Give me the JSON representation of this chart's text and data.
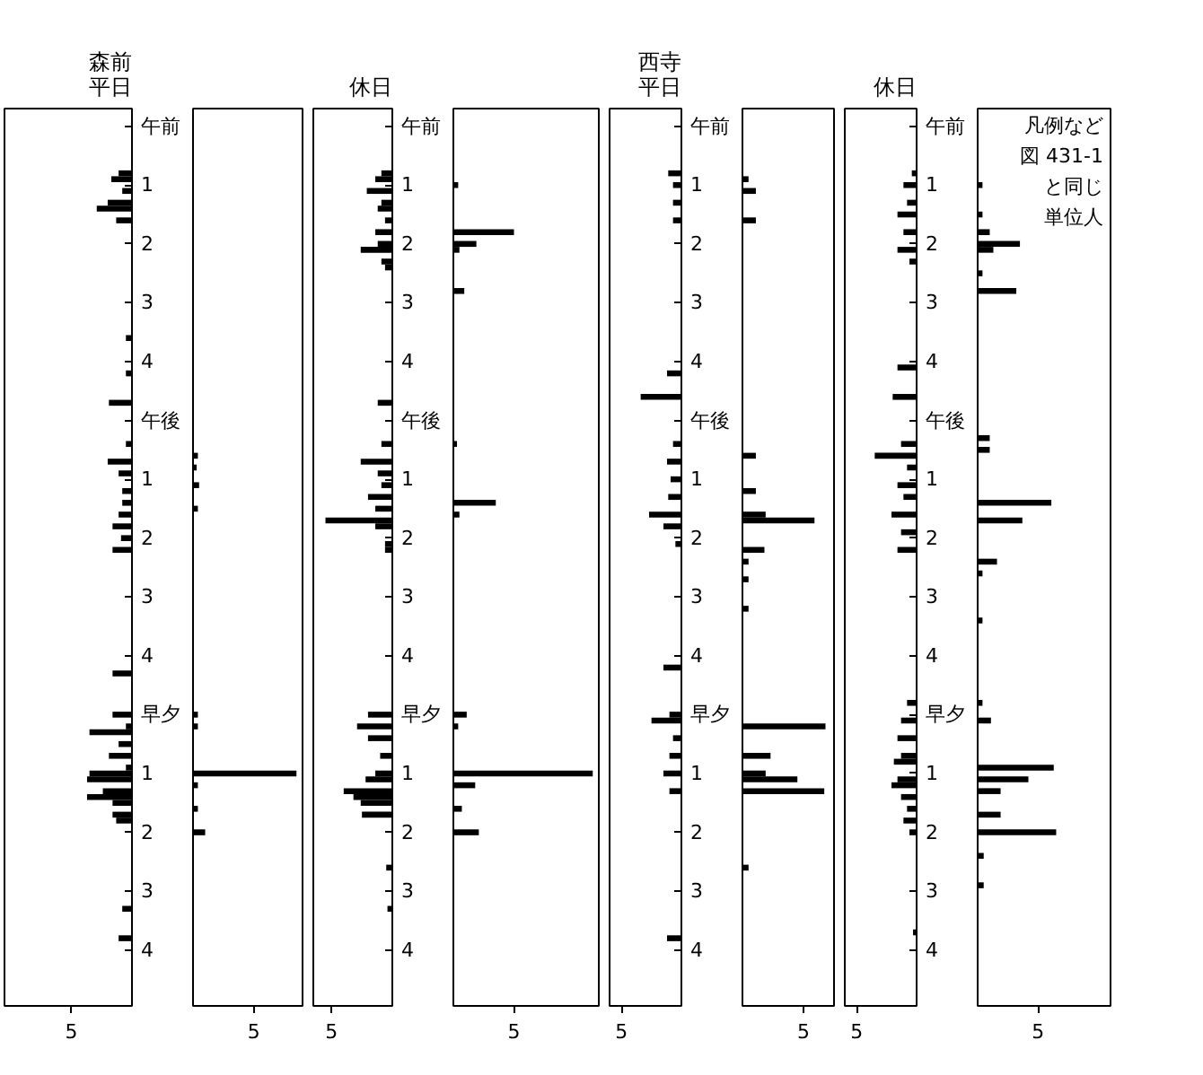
{
  "chart_data": [
    {
      "type": "bar",
      "orientation": "horizontal",
      "title": "森前平日",
      "color": "#000000",
      "xlim": [
        10.5,
        0
      ],
      "xticks": [
        5
      ],
      "categories": [
        "午前",
        null,
        null,
        null,
        null,
        null,
        null,
        null,
        null,
        null,
        "1",
        null,
        null,
        null,
        null,
        null,
        null,
        null,
        null,
        null,
        "2",
        null,
        null,
        null,
        null,
        null,
        null,
        null,
        null,
        null,
        "3",
        null,
        null,
        null,
        null,
        null,
        null,
        null,
        null,
        null,
        "4",
        null,
        null,
        null,
        null,
        null,
        null,
        null,
        null,
        null,
        "午後",
        null,
        null,
        null,
        null,
        null,
        null,
        null,
        null,
        null,
        "1",
        null,
        null,
        null,
        null,
        null,
        null,
        null,
        null,
        null,
        "2",
        null,
        null,
        null,
        null,
        null,
        null,
        null,
        null,
        null,
        "3",
        null,
        null,
        null,
        null,
        null,
        null,
        null,
        null,
        null,
        "4",
        null,
        null,
        null,
        null,
        null,
        null,
        null,
        null,
        null,
        "早夕",
        null,
        null,
        null,
        null,
        null,
        null,
        null,
        null,
        null,
        "1",
        null,
        null,
        null,
        null,
        null,
        null,
        null,
        null,
        null,
        "2",
        null,
        null,
        null,
        null,
        null,
        null,
        null,
        null,
        null,
        "3",
        null,
        null,
        null,
        null,
        null,
        null,
        null,
        null,
        null,
        "4",
        null,
        null,
        null,
        null,
        null,
        null,
        null,
        null,
        null
      ],
      "values": [
        null,
        null,
        null,
        null,
        null,
        null,
        null,
        null,
        1.1,
        1.7,
        null,
        0.8,
        null,
        2.0,
        2.9,
        null,
        1.3,
        null,
        null,
        null,
        null,
        null,
        null,
        null,
        null,
        null,
        null,
        null,
        null,
        null,
        null,
        null,
        null,
        null,
        null,
        null,
        0.5,
        null,
        null,
        null,
        null,
        null,
        0.5,
        null,
        null,
        null,
        null,
        1.9,
        null,
        null,
        null,
        null,
        null,
        null,
        0.5,
        null,
        null,
        2.0,
        null,
        1.1,
        null,
        null,
        0.8,
        null,
        0.8,
        null,
        1.1,
        null,
        1.6,
        null,
        0.9,
        null,
        1.6,
        null,
        null,
        null,
        null,
        null,
        null,
        null,
        null,
        null,
        null,
        null,
        null,
        null,
        null,
        null,
        null,
        null,
        null,
        null,
        null,
        1.6,
        null,
        null,
        null,
        null,
        null,
        null,
        1.6,
        null,
        0.5,
        3.5,
        null,
        1.1,
        null,
        1.9,
        null,
        0.5,
        3.5,
        3.7,
        null,
        2.4,
        3.7,
        1.6,
        null,
        1.6,
        1.3,
        null,
        null,
        null,
        null,
        null,
        null,
        null,
        null,
        null,
        null,
        null,
        null,
        null,
        null,
        0.8,
        null,
        null,
        null,
        null,
        1.1,
        null,
        null,
        null,
        null,
        null,
        null,
        null,
        null,
        null,
        null,
        null
      ]
    },
    {
      "type": "bar",
      "orientation": "horizontal",
      "color": "#000000",
      "xlim": [
        0,
        9
      ],
      "xticks": [
        5
      ],
      "categories": [
        null,
        null,
        null,
        null,
        null,
        null,
        null,
        null,
        null,
        null,
        null,
        null,
        null,
        null,
        null,
        null,
        null,
        null,
        null,
        null,
        null,
        null,
        null,
        null,
        null,
        null,
        null,
        null,
        null,
        null,
        null,
        null,
        null,
        null,
        null,
        null,
        null,
        null,
        null,
        null,
        null,
        null,
        null,
        null,
        null,
        null,
        null,
        null,
        null,
        null,
        null,
        null,
        null,
        null,
        null,
        null,
        null,
        null,
        null,
        null,
        null,
        null,
        null,
        null,
        null,
        null,
        null,
        null,
        null,
        null,
        null,
        null,
        null,
        null,
        null,
        null,
        null,
        null,
        null,
        null,
        null,
        null,
        null,
        null,
        null,
        null,
        null,
        null,
        null,
        null,
        null,
        null,
        null,
        null,
        null,
        null,
        null,
        null,
        null,
        null,
        null,
        null,
        null,
        null,
        null,
        null,
        null,
        null,
        null,
        null,
        null,
        null,
        null,
        null,
        null,
        null,
        null,
        null,
        null,
        null,
        null,
        null,
        null,
        null,
        null,
        null,
        null,
        null,
        null,
        null,
        null,
        null,
        null,
        null,
        null,
        null,
        null,
        null,
        null,
        null,
        null,
        null,
        null,
        null,
        null,
        null,
        null,
        null,
        null,
        null
      ],
      "values": [
        null,
        null,
        null,
        null,
        null,
        null,
        null,
        null,
        null,
        null,
        null,
        null,
        null,
        null,
        null,
        null,
        null,
        null,
        null,
        null,
        null,
        null,
        null,
        null,
        null,
        null,
        null,
        null,
        null,
        null,
        null,
        null,
        null,
        null,
        null,
        null,
        null,
        null,
        null,
        null,
        null,
        null,
        null,
        null,
        null,
        null,
        null,
        null,
        null,
        null,
        null,
        null,
        null,
        null,
        null,
        null,
        0.4,
        null,
        0.3,
        null,
        null,
        0.5,
        null,
        null,
        null,
        0.4,
        null,
        null,
        null,
        null,
        null,
        null,
        null,
        null,
        null,
        null,
        null,
        null,
        null,
        null,
        null,
        null,
        null,
        null,
        null,
        null,
        null,
        null,
        null,
        null,
        null,
        null,
        null,
        null,
        null,
        null,
        null,
        null,
        null,
        null,
        0.4,
        null,
        0.4,
        null,
        null,
        null,
        null,
        null,
        null,
        null,
        8.5,
        null,
        0.4,
        null,
        null,
        null,
        0.4,
        null,
        null,
        null,
        1.0,
        null,
        null,
        null,
        null,
        null,
        null,
        null,
        null,
        null,
        null,
        null,
        null,
        null,
        null,
        null,
        null,
        null,
        null,
        null,
        null,
        null,
        null,
        null,
        null,
        null,
        null,
        null,
        null,
        null
      ]
    },
    {
      "type": "bar",
      "orientation": "horizontal",
      "title": "休日",
      "color": "#000000",
      "xlim": [
        6.5,
        0
      ],
      "xticks": [
        5
      ],
      "categories": [
        "午前",
        null,
        null,
        null,
        null,
        null,
        null,
        null,
        null,
        null,
        "1",
        null,
        null,
        null,
        null,
        null,
        null,
        null,
        null,
        null,
        "2",
        null,
        null,
        null,
        null,
        null,
        null,
        null,
        null,
        null,
        "3",
        null,
        null,
        null,
        null,
        null,
        null,
        null,
        null,
        null,
        "4",
        null,
        null,
        null,
        null,
        null,
        null,
        null,
        null,
        null,
        "午後",
        null,
        null,
        null,
        null,
        null,
        null,
        null,
        null,
        null,
        "1",
        null,
        null,
        null,
        null,
        null,
        null,
        null,
        null,
        null,
        "2",
        null,
        null,
        null,
        null,
        null,
        null,
        null,
        null,
        null,
        "3",
        null,
        null,
        null,
        null,
        null,
        null,
        null,
        null,
        null,
        "4",
        null,
        null,
        null,
        null,
        null,
        null,
        null,
        null,
        null,
        "早夕",
        null,
        null,
        null,
        null,
        null,
        null,
        null,
        null,
        null,
        "1",
        null,
        null,
        null,
        null,
        null,
        null,
        null,
        null,
        null,
        "2",
        null,
        null,
        null,
        null,
        null,
        null,
        null,
        null,
        null,
        "3",
        null,
        null,
        null,
        null,
        null,
        null,
        null,
        null,
        null,
        "4",
        null,
        null,
        null,
        null,
        null,
        null,
        null,
        null,
        null
      ],
      "values": [
        null,
        null,
        null,
        null,
        null,
        null,
        null,
        null,
        0.9,
        1.4,
        null,
        2.1,
        null,
        0.9,
        1.2,
        null,
        0.6,
        null,
        1.4,
        null,
        1.2,
        2.6,
        null,
        0.9,
        0.6,
        null,
        null,
        null,
        null,
        null,
        null,
        null,
        null,
        null,
        null,
        null,
        null,
        null,
        null,
        null,
        null,
        null,
        null,
        null,
        null,
        null,
        null,
        1.2,
        null,
        null,
        null,
        null,
        null,
        null,
        0.9,
        null,
        null,
        2.6,
        null,
        1.2,
        null,
        0.9,
        null,
        2.0,
        null,
        1.4,
        null,
        5.5,
        1.4,
        null,
        null,
        0.6,
        0.6,
        null,
        null,
        null,
        null,
        null,
        null,
        null,
        null,
        null,
        null,
        null,
        null,
        null,
        null,
        null,
        null,
        null,
        null,
        null,
        null,
        null,
        null,
        null,
        null,
        null,
        null,
        null,
        2.0,
        null,
        2.9,
        null,
        2.0,
        null,
        null,
        1.0,
        null,
        null,
        1.4,
        2.2,
        null,
        4.0,
        3.2,
        2.6,
        null,
        2.5,
        null,
        null,
        null,
        null,
        null,
        null,
        null,
        null,
        0.5,
        null,
        null,
        null,
        null,
        null,
        null,
        0.4,
        null,
        null,
        null,
        null,
        null,
        null,
        null,
        null,
        null,
        null,
        null,
        null,
        null,
        null,
        null,
        null
      ]
    },
    {
      "type": "bar",
      "orientation": "horizontal",
      "color": "#000000",
      "xlim": [
        0,
        12
      ],
      "xticks": [
        5
      ],
      "categories": [
        null,
        null,
        null,
        null,
        null,
        null,
        null,
        null,
        null,
        null,
        null,
        null,
        null,
        null,
        null,
        null,
        null,
        null,
        null,
        null,
        null,
        null,
        null,
        null,
        null,
        null,
        null,
        null,
        null,
        null,
        null,
        null,
        null,
        null,
        null,
        null,
        null,
        null,
        null,
        null,
        null,
        null,
        null,
        null,
        null,
        null,
        null,
        null,
        null,
        null,
        null,
        null,
        null,
        null,
        null,
        null,
        null,
        null,
        null,
        null,
        null,
        null,
        null,
        null,
        null,
        null,
        null,
        null,
        null,
        null,
        null,
        null,
        null,
        null,
        null,
        null,
        null,
        null,
        null,
        null,
        null,
        null,
        null,
        null,
        null,
        null,
        null,
        null,
        null,
        null,
        null,
        null,
        null,
        null,
        null,
        null,
        null,
        null,
        null,
        null,
        null,
        null,
        null,
        null,
        null,
        null,
        null,
        null,
        null,
        null,
        null,
        null,
        null,
        null,
        null,
        null,
        null,
        null,
        null,
        null,
        null,
        null,
        null,
        null,
        null,
        null,
        null,
        null,
        null,
        null,
        null,
        null,
        null,
        null,
        null,
        null,
        null,
        null,
        null,
        null,
        null,
        null,
        null,
        null,
        null,
        null,
        null,
        null,
        null,
        null
      ],
      "values": [
        null,
        null,
        null,
        null,
        null,
        null,
        null,
        null,
        null,
        null,
        0.4,
        null,
        null,
        null,
        null,
        null,
        null,
        null,
        5.0,
        null,
        1.9,
        0.5,
        null,
        null,
        null,
        null,
        null,
        null,
        0.9,
        null,
        null,
        null,
        null,
        null,
        null,
        null,
        null,
        null,
        null,
        null,
        null,
        null,
        null,
        null,
        null,
        null,
        null,
        null,
        null,
        null,
        null,
        null,
        null,
        null,
        0.3,
        null,
        null,
        null,
        null,
        null,
        null,
        null,
        null,
        null,
        3.5,
        null,
        0.5,
        null,
        null,
        null,
        null,
        null,
        null,
        null,
        null,
        null,
        null,
        null,
        null,
        null,
        null,
        null,
        null,
        null,
        null,
        null,
        null,
        null,
        null,
        null,
        null,
        null,
        null,
        null,
        null,
        null,
        null,
        null,
        null,
        null,
        1.1,
        null,
        0.4,
        null,
        null,
        null,
        null,
        null,
        null,
        null,
        11.5,
        null,
        1.8,
        null,
        null,
        null,
        0.7,
        null,
        null,
        null,
        2.1,
        null,
        null,
        null,
        null,
        null,
        null,
        null,
        null,
        null,
        null,
        null,
        null,
        null,
        null,
        null,
        null,
        null,
        null,
        null,
        null,
        null,
        null,
        null,
        null,
        null,
        null,
        null,
        null,
        null
      ]
    },
    {
      "type": "bar",
      "orientation": "horizontal",
      "title": "西寺平日",
      "color": "#000000",
      "xlim": [
        6,
        0
      ],
      "xticks": [
        5
      ],
      "categories": [
        "午前",
        null,
        null,
        null,
        null,
        null,
        null,
        null,
        null,
        null,
        "1",
        null,
        null,
        null,
        null,
        null,
        null,
        null,
        null,
        null,
        "2",
        null,
        null,
        null,
        null,
        null,
        null,
        null,
        null,
        null,
        "3",
        null,
        null,
        null,
        null,
        null,
        null,
        null,
        null,
        null,
        "4",
        null,
        null,
        null,
        null,
        null,
        null,
        null,
        null,
        null,
        "午後",
        null,
        null,
        null,
        null,
        null,
        null,
        null,
        null,
        null,
        "1",
        null,
        null,
        null,
        null,
        null,
        null,
        null,
        null,
        null,
        "2",
        null,
        null,
        null,
        null,
        null,
        null,
        null,
        null,
        null,
        "3",
        null,
        null,
        null,
        null,
        null,
        null,
        null,
        null,
        null,
        "4",
        null,
        null,
        null,
        null,
        null,
        null,
        null,
        null,
        null,
        "早夕",
        null,
        null,
        null,
        null,
        null,
        null,
        null,
        null,
        null,
        "1",
        null,
        null,
        null,
        null,
        null,
        null,
        null,
        null,
        null,
        "2",
        null,
        null,
        null,
        null,
        null,
        null,
        null,
        null,
        null,
        "3",
        null,
        null,
        null,
        null,
        null,
        null,
        null,
        null,
        null,
        "4",
        null,
        null,
        null,
        null,
        null,
        null,
        null,
        null,
        null
      ],
      "values": [
        null,
        null,
        null,
        null,
        null,
        null,
        null,
        null,
        1.1,
        null,
        0.7,
        null,
        null,
        0.7,
        null,
        null,
        0.7,
        null,
        null,
        null,
        null,
        null,
        null,
        null,
        null,
        null,
        null,
        null,
        null,
        null,
        null,
        null,
        null,
        null,
        null,
        null,
        null,
        null,
        null,
        null,
        null,
        null,
        1.2,
        null,
        null,
        null,
        3.4,
        null,
        null,
        null,
        null,
        null,
        null,
        null,
        0.7,
        null,
        null,
        1.2,
        null,
        null,
        0.9,
        null,
        null,
        1.1,
        null,
        null,
        2.7,
        null,
        1.5,
        null,
        null,
        0.5,
        null,
        null,
        null,
        null,
        null,
        null,
        null,
        null,
        null,
        null,
        null,
        null,
        null,
        null,
        null,
        null,
        null,
        null,
        null,
        null,
        1.5,
        null,
        null,
        null,
        null,
        null,
        null,
        null,
        1.0,
        2.5,
        null,
        null,
        0.7,
        null,
        null,
        1.0,
        null,
        null,
        1.5,
        null,
        null,
        1.0,
        null,
        null,
        null,
        null,
        null,
        null,
        null,
        null,
        null,
        null,
        null,
        null,
        null,
        null,
        null,
        null,
        null,
        null,
        null,
        null,
        null,
        null,
        null,
        null,
        1.2,
        null,
        null,
        null,
        null,
        null,
        null,
        null,
        null,
        null,
        null,
        null
      ]
    },
    {
      "type": "bar",
      "orientation": "horizontal",
      "color": "#000000",
      "xlim": [
        0,
        7.5
      ],
      "xticks": [
        5
      ],
      "categories": [
        null,
        null,
        null,
        null,
        null,
        null,
        null,
        null,
        null,
        null,
        null,
        null,
        null,
        null,
        null,
        null,
        null,
        null,
        null,
        null,
        null,
        null,
        null,
        null,
        null,
        null,
        null,
        null,
        null,
        null,
        null,
        null,
        null,
        null,
        null,
        null,
        null,
        null,
        null,
        null,
        null,
        null,
        null,
        null,
        null,
        null,
        null,
        null,
        null,
        null,
        null,
        null,
        null,
        null,
        null,
        null,
        null,
        null,
        null,
        null,
        null,
        null,
        null,
        null,
        null,
        null,
        null,
        null,
        null,
        null,
        null,
        null,
        null,
        null,
        null,
        null,
        null,
        null,
        null,
        null,
        null,
        null,
        null,
        null,
        null,
        null,
        null,
        null,
        null,
        null,
        null,
        null,
        null,
        null,
        null,
        null,
        null,
        null,
        null,
        null,
        null,
        null,
        null,
        null,
        null,
        null,
        null,
        null,
        null,
        null,
        null,
        null,
        null,
        null,
        null,
        null,
        null,
        null,
        null,
        null,
        null,
        null,
        null,
        null,
        null,
        null,
        null,
        null,
        null,
        null,
        null,
        null,
        null,
        null,
        null,
        null,
        null,
        null,
        null,
        null,
        null,
        null,
        null,
        null,
        null,
        null,
        null,
        null,
        null,
        null
      ],
      "values": [
        null,
        null,
        null,
        null,
        null,
        null,
        null,
        null,
        null,
        0.5,
        null,
        1.1,
        null,
        null,
        null,
        null,
        1.1,
        null,
        null,
        null,
        null,
        null,
        null,
        null,
        null,
        null,
        null,
        null,
        null,
        null,
        null,
        null,
        null,
        null,
        null,
        null,
        null,
        null,
        null,
        null,
        null,
        null,
        null,
        null,
        null,
        null,
        null,
        null,
        null,
        null,
        null,
        null,
        null,
        null,
        null,
        null,
        1.1,
        null,
        null,
        null,
        null,
        null,
        1.1,
        null,
        null,
        null,
        1.9,
        5.9,
        null,
        null,
        null,
        null,
        1.8,
        null,
        0.5,
        null,
        null,
        0.5,
        null,
        null,
        null,
        null,
        0.5,
        null,
        null,
        null,
        null,
        null,
        null,
        null,
        null,
        null,
        null,
        null,
        null,
        null,
        null,
        null,
        null,
        null,
        null,
        null,
        6.8,
        null,
        null,
        null,
        null,
        2.3,
        null,
        null,
        1.9,
        4.5,
        null,
        6.7,
        null,
        null,
        null,
        null,
        null,
        null,
        null,
        null,
        null,
        null,
        null,
        null,
        0.5,
        null,
        null,
        null,
        null,
        null,
        null,
        null,
        null,
        null,
        null,
        null,
        null,
        null,
        null,
        null,
        null,
        null,
        null,
        null,
        null,
        null,
        null,
        null
      ]
    },
    {
      "type": "bar",
      "orientation": "horizontal",
      "title": "休日",
      "color": "#000000",
      "xlim": [
        6,
        0
      ],
      "xticks": [
        5
      ],
      "categories": [
        "午前",
        null,
        null,
        null,
        null,
        null,
        null,
        null,
        null,
        null,
        "1",
        null,
        null,
        null,
        null,
        null,
        null,
        null,
        null,
        null,
        "2",
        null,
        null,
        null,
        null,
        null,
        null,
        null,
        null,
        null,
        "3",
        null,
        null,
        null,
        null,
        null,
        null,
        null,
        null,
        null,
        "4",
        null,
        null,
        null,
        null,
        null,
        null,
        null,
        null,
        null,
        "午後",
        null,
        null,
        null,
        null,
        null,
        null,
        null,
        null,
        null,
        "1",
        null,
        null,
        null,
        null,
        null,
        null,
        null,
        null,
        null,
        "2",
        null,
        null,
        null,
        null,
        null,
        null,
        null,
        null,
        null,
        "3",
        null,
        null,
        null,
        null,
        null,
        null,
        null,
        null,
        null,
        "4",
        null,
        null,
        null,
        null,
        null,
        null,
        null,
        null,
        null,
        "早夕",
        null,
        null,
        null,
        null,
        null,
        null,
        null,
        null,
        null,
        "1",
        null,
        null,
        null,
        null,
        null,
        null,
        null,
        null,
        null,
        "2",
        null,
        null,
        null,
        null,
        null,
        null,
        null,
        null,
        null,
        "3",
        null,
        null,
        null,
        null,
        null,
        null,
        null,
        null,
        null,
        "4",
        null,
        null,
        null,
        null,
        null,
        null,
        null,
        null,
        null
      ],
      "values": [
        null,
        null,
        null,
        null,
        null,
        null,
        null,
        null,
        0.4,
        null,
        1.1,
        null,
        null,
        0.8,
        null,
        1.6,
        null,
        null,
        1.1,
        null,
        null,
        1.6,
        null,
        0.6,
        null,
        null,
        null,
        null,
        null,
        null,
        null,
        null,
        null,
        null,
        null,
        null,
        null,
        null,
        null,
        null,
        null,
        1.6,
        null,
        null,
        null,
        null,
        2.0,
        null,
        null,
        null,
        null,
        null,
        null,
        null,
        1.3,
        null,
        3.5,
        null,
        0.8,
        null,
        null,
        1.6,
        null,
        1.1,
        null,
        null,
        2.1,
        null,
        null,
        1.3,
        null,
        null,
        1.6,
        null,
        null,
        null,
        null,
        null,
        null,
        null,
        null,
        null,
        null,
        null,
        null,
        null,
        null,
        null,
        null,
        null,
        null,
        null,
        null,
        null,
        null,
        null,
        null,
        null,
        0.8,
        null,
        null,
        1.3,
        null,
        null,
        1.6,
        null,
        null,
        1.3,
        1.9,
        null,
        null,
        1.6,
        2.1,
        null,
        1.3,
        null,
        0.8,
        null,
        1.1,
        null,
        0.6,
        null,
        null,
        null,
        null,
        null,
        null,
        null,
        null,
        null,
        null,
        null,
        null,
        null,
        null,
        null,
        null,
        0.3,
        null,
        null,
        null,
        null,
        null,
        null,
        null,
        null,
        null,
        null,
        null,
        null
      ]
    },
    {
      "type": "bar",
      "orientation": "horizontal",
      "color": "#000000",
      "xlim": [
        0,
        11
      ],
      "xticks": [
        5
      ],
      "annotations": [
        "凡例など",
        "図 431-1",
        "と同じ",
        "単位人"
      ],
      "categories": [
        null,
        null,
        null,
        null,
        null,
        null,
        null,
        null,
        null,
        null,
        null,
        null,
        null,
        null,
        null,
        null,
        null,
        null,
        null,
        null,
        null,
        null,
        null,
        null,
        null,
        null,
        null,
        null,
        null,
        null,
        null,
        null,
        null,
        null,
        null,
        null,
        null,
        null,
        null,
        null,
        null,
        null,
        null,
        null,
        null,
        null,
        null,
        null,
        null,
        null,
        null,
        null,
        null,
        null,
        null,
        null,
        null,
        null,
        null,
        null,
        null,
        null,
        null,
        null,
        null,
        null,
        null,
        null,
        null,
        null,
        null,
        null,
        null,
        null,
        null,
        null,
        null,
        null,
        null,
        null,
        null,
        null,
        null,
        null,
        null,
        null,
        null,
        null,
        null,
        null,
        null,
        null,
        null,
        null,
        null,
        null,
        null,
        null,
        null,
        null,
        null,
        null,
        null,
        null,
        null,
        null,
        null,
        null,
        null,
        null,
        null,
        null,
        null,
        null,
        null,
        null,
        null,
        null,
        null,
        null,
        null,
        null,
        null,
        null,
        null,
        null,
        null,
        null,
        null,
        null,
        null,
        null,
        null,
        null,
        null,
        null,
        null,
        null,
        null,
        null,
        null,
        null,
        null,
        null,
        null,
        null,
        null,
        null,
        null,
        null
      ],
      "values": [
        null,
        null,
        null,
        null,
        null,
        null,
        null,
        null,
        null,
        null,
        0.4,
        null,
        null,
        null,
        null,
        0.4,
        null,
        null,
        1.0,
        null,
        3.5,
        1.3,
        null,
        null,
        null,
        0.4,
        null,
        null,
        3.2,
        null,
        null,
        null,
        null,
        null,
        null,
        null,
        null,
        null,
        null,
        null,
        null,
        null,
        null,
        null,
        null,
        null,
        null,
        null,
        null,
        null,
        null,
        null,
        null,
        1.0,
        null,
        1.0,
        null,
        null,
        null,
        null,
        null,
        null,
        null,
        null,
        6.1,
        null,
        null,
        3.7,
        null,
        null,
        null,
        null,
        null,
        null,
        1.6,
        null,
        0.4,
        null,
        null,
        null,
        null,
        null,
        null,
        null,
        0.4,
        null,
        null,
        null,
        null,
        null,
        null,
        null,
        null,
        null,
        null,
        null,
        null,
        null,
        0.4,
        null,
        null,
        1.1,
        null,
        null,
        null,
        null,
        null,
        null,
        null,
        6.3,
        null,
        4.2,
        null,
        1.9,
        null,
        null,
        null,
        1.9,
        null,
        null,
        6.5,
        null,
        null,
        null,
        0.5,
        null,
        null,
        null,
        null,
        0.5,
        null,
        null,
        null,
        null,
        null,
        null,
        null,
        null,
        null,
        null,
        null,
        null,
        null,
        null,
        null,
        null,
        null,
        null,
        null,
        null
      ]
    }
  ]
}
